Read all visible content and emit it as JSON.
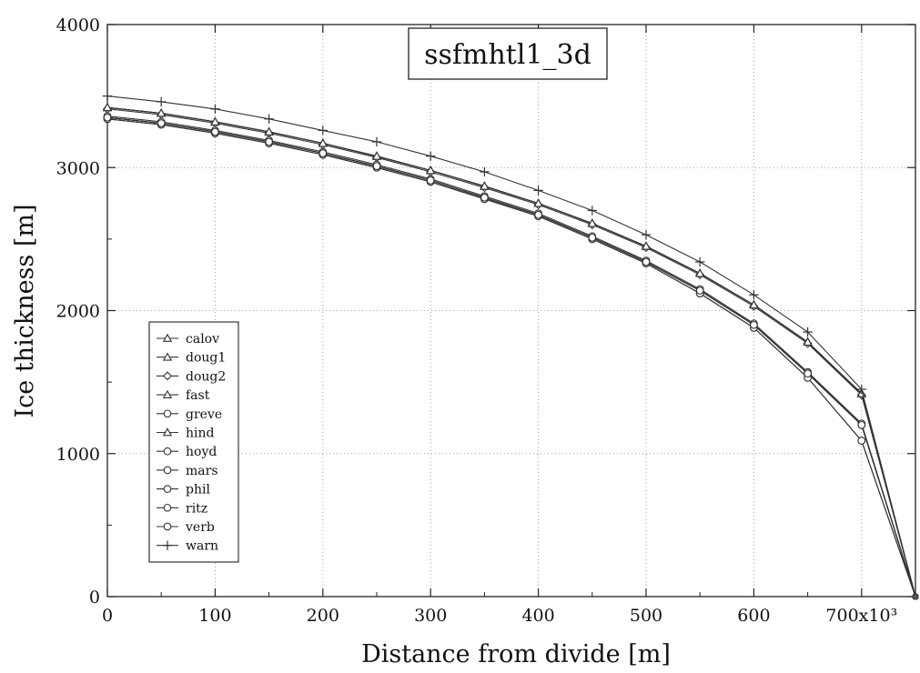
{
  "chart_data": {
    "type": "line",
    "title": "ssfmhtl1_3d",
    "xlabel": "Distance from divide [m]",
    "ylabel": "Ice thickness [m]",
    "xlim": [
      0,
      750000
    ],
    "ylim": [
      0,
      4000
    ],
    "x_ticks": [
      0,
      100000,
      200000,
      300000,
      400000,
      500000,
      600000,
      700000
    ],
    "x_tick_labels": [
      "0",
      "100",
      "200",
      "300",
      "400",
      "500",
      "600",
      "700x10³"
    ],
    "y_ticks": [
      0,
      1000,
      2000,
      3000,
      4000
    ],
    "y_tick_labels": [
      "0",
      "1000",
      "2000",
      "3000",
      "4000"
    ],
    "grid": true,
    "legend_position": "lower-left",
    "x": [
      0,
      50000,
      100000,
      150000,
      200000,
      250000,
      300000,
      350000,
      400000,
      450000,
      500000,
      550000,
      600000,
      650000,
      700000,
      750000
    ],
    "series": [
      {
        "name": "calov",
        "marker": "triangle",
        "values": [
          3420,
          3380,
          3320,
          3250,
          3170,
          3080,
          2980,
          2870,
          2750,
          2610,
          2450,
          2260,
          2040,
          1780,
          1420,
          0
        ]
      },
      {
        "name": "doug1",
        "marker": "triangle",
        "values": [
          3420,
          3380,
          3320,
          3250,
          3170,
          3080,
          2980,
          2870,
          2750,
          2610,
          2450,
          2260,
          2040,
          1780,
          1420,
          0
        ]
      },
      {
        "name": "doug2",
        "marker": "diamond",
        "values": [
          3410,
          3370,
          3310,
          3240,
          3160,
          3070,
          2970,
          2860,
          2740,
          2600,
          2440,
          2250,
          2030,
          1770,
          1410,
          0
        ]
      },
      {
        "name": "fast",
        "marker": "triangle",
        "values": [
          3420,
          3380,
          3320,
          3250,
          3170,
          3080,
          2980,
          2870,
          2750,
          2610,
          2450,
          2260,
          2040,
          1780,
          1420,
          0
        ]
      },
      {
        "name": "greve",
        "marker": "circle",
        "values": [
          3350,
          3310,
          3250,
          3180,
          3100,
          3010,
          2910,
          2790,
          2670,
          2510,
          2340,
          2140,
          1900,
          1560,
          1200,
          0
        ]
      },
      {
        "name": "hind",
        "marker": "triangle",
        "values": [
          3420,
          3380,
          3320,
          3250,
          3170,
          3080,
          2980,
          2870,
          2750,
          2610,
          2450,
          2260,
          2040,
          1780,
          1420,
          0
        ]
      },
      {
        "name": "hoyd",
        "marker": "circle",
        "values": [
          3340,
          3300,
          3240,
          3170,
          3090,
          3000,
          2900,
          2780,
          2660,
          2500,
          2330,
          2120,
          1880,
          1530,
          1090,
          0
        ]
      },
      {
        "name": "mars",
        "marker": "circle",
        "values": [
          3350,
          3310,
          3250,
          3180,
          3100,
          3010,
          2910,
          2790,
          2670,
          2510,
          2340,
          2140,
          1900,
          1560,
          1200,
          0
        ]
      },
      {
        "name": "phil",
        "marker": "circle",
        "values": [
          3340,
          3300,
          3240,
          3170,
          3090,
          3000,
          2900,
          2780,
          2660,
          2500,
          2330,
          2120,
          1880,
          1530,
          1090,
          0
        ]
      },
      {
        "name": "ritz",
        "marker": "circle",
        "values": [
          3360,
          3320,
          3260,
          3190,
          3110,
          3020,
          2920,
          2800,
          2680,
          2520,
          2350,
          2150,
          1910,
          1570,
          1210,
          0
        ]
      },
      {
        "name": "verb",
        "marker": "circle",
        "values": [
          3350,
          3310,
          3250,
          3180,
          3100,
          3010,
          2910,
          2790,
          2670,
          2510,
          2340,
          2140,
          1900,
          1560,
          1200,
          0
        ]
      },
      {
        "name": "warn",
        "marker": "plus",
        "values": [
          3500,
          3460,
          3410,
          3340,
          3260,
          3180,
          3080,
          2970,
          2840,
          2700,
          2530,
          2340,
          2110,
          1850,
          1450,
          0
        ]
      }
    ]
  }
}
